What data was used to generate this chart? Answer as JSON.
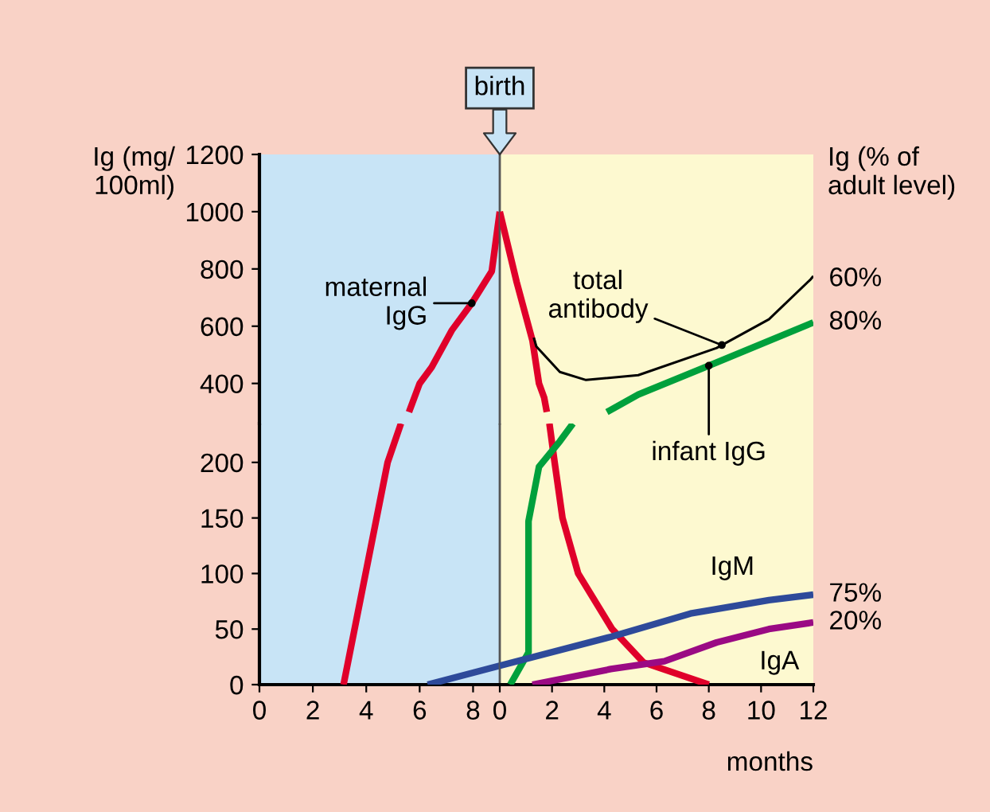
{
  "chart_data": [
    {
      "type": "line",
      "ylabel": "Ig (mg/\n100ml)",
      "xlim": [
        0,
        9
      ],
      "ylim": [
        260,
        1200
      ],
      "yticks": [
        400,
        600,
        800,
        1000,
        1200
      ],
      "tick_labels": "y",
      "grid": false,
      "series": [
        {
          "color": "#e0002a",
          "x": [
            5.6,
            6.0,
            6.45,
            7.2,
            7.95,
            8.7,
            9.0
          ],
          "values": [
            300,
            400,
            457,
            585,
            680,
            792,
            1000
          ]
        }
      ],
      "bands": [
        {
          "axis": "x",
          "from": 0,
          "to": 9,
          "color": "#c8e4f6"
        }
      ],
      "annotations": [
        {
          "text": "maternal\nIgG",
          "x": 7.95,
          "y": 680
        }
      ]
    },
    {
      "type": "line",
      "y2label": "Ig (% of\nadult level)",
      "xlim": [
        0,
        12
      ],
      "ylim": [
        260,
        1200
      ],
      "tick_labels": false,
      "grid": false,
      "series": [
        {
          "color": "#e0002a",
          "x": [
            0,
            0.65,
            1.25,
            1.5,
            1.7,
            1.8
          ],
          "values": [
            1000,
            753,
            550,
            400,
            350,
            300
          ]
        },
        {
          "color": "#000000",
          "x": [
            1.3,
            1.4,
            2.3,
            3.3,
            5.3,
            8.3,
            10.3,
            11.9,
            12.0
          ],
          "values": [
            560,
            529,
            440,
            412,
            429,
            524,
            624,
            764,
            775
          ]
        },
        {
          "color": "#00a03c",
          "x": [
            4.1,
            5.3,
            8.0,
            12.0
          ],
          "values": [
            300,
            361,
            462,
            613
          ]
        }
      ],
      "bands": [
        {
          "axis": "x",
          "from": 0,
          "to": 12,
          "color": "#fdf9d0"
        }
      ],
      "annotations": [
        {
          "text": "birth",
          "x": 0,
          "y": 1200
        },
        {
          "text": "total\nantibody",
          "x": 8.5,
          "y": 534
        },
        {
          "text": "infant IgG",
          "x": 8.0,
          "y": 462
        },
        {
          "text": "60%",
          "x": 12,
          "y": 764
        },
        {
          "text": "80%",
          "x": 12,
          "y": 613
        }
      ]
    },
    {
      "type": "line",
      "xlim": [
        0,
        9
      ],
      "ylim": [
        0,
        235
      ],
      "yticks": [
        0,
        50,
        100,
        150,
        200
      ],
      "xticks": [
        0,
        2,
        4,
        6,
        8
      ],
      "grid": false,
      "series": [
        {
          "color": "#e0002a",
          "x": [
            3.15,
            4.8,
            5.3
          ],
          "values": [
            0,
            200,
            235
          ]
        },
        {
          "color": "#2e4a9a",
          "x": [
            6.3,
            9.0
          ],
          "values": [
            0,
            17
          ]
        }
      ],
      "bands": [
        {
          "axis": "x",
          "from": 0,
          "to": 9,
          "color": "#c8e4f6"
        }
      ]
    },
    {
      "type": "line",
      "xlabel": "months",
      "xlim": [
        0,
        12
      ],
      "ylim": [
        0,
        235
      ],
      "xticks": [
        0,
        2,
        4,
        6,
        8,
        10,
        12
      ],
      "tick_labels": "x",
      "grid": false,
      "series": [
        {
          "color": "#e0002a",
          "x": [
            1.9,
            2.1,
            2.4,
            3.0,
            4.3,
            5.5,
            8.0
          ],
          "values": [
            235,
            200,
            150,
            100,
            50,
            20,
            0
          ]
        },
        {
          "color": "#00a03c",
          "x": [
            0.4,
            1.1,
            1.1,
            1.5,
            2.3,
            2.8
          ],
          "values": [
            0,
            29,
            147,
            196,
            219,
            235
          ]
        },
        {
          "color": "#2e4a9a",
          "x": [
            0,
            4.25,
            7.3,
            10.3,
            12
          ],
          "values": [
            17,
            43,
            64,
            76,
            81
          ]
        },
        {
          "color": "#9a0a84",
          "x": [
            1.25,
            4.25,
            6.3,
            8.3,
            10.3,
            12
          ],
          "values": [
            0,
            14,
            21,
            38,
            50,
            56
          ]
        }
      ],
      "bands": [
        {
          "axis": "x",
          "from": 0,
          "to": 12,
          "color": "#fdf9d0"
        }
      ],
      "annotations": [
        {
          "text": "IgM",
          "x": 8.9,
          "y": 70
        },
        {
          "text": "IgA",
          "x": 10.7,
          "y": 51
        },
        {
          "text": "75%",
          "x": 12,
          "y": 81
        },
        {
          "text": "20%",
          "x": 12,
          "y": 56
        }
      ]
    }
  ]
}
